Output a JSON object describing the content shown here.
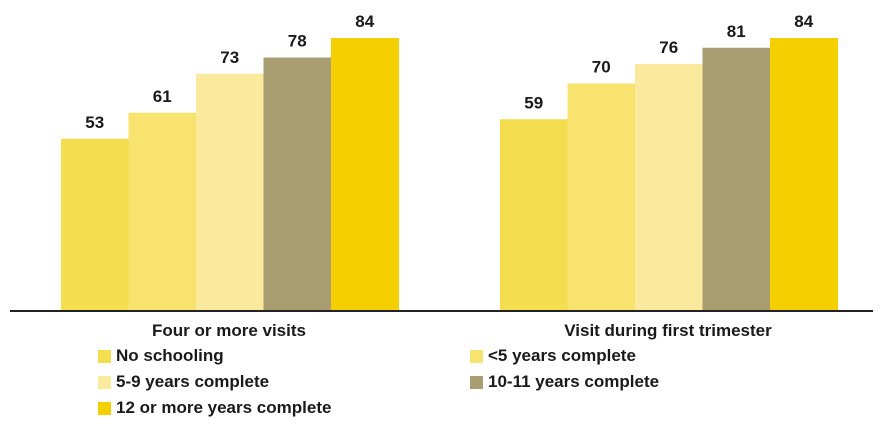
{
  "chart_data": {
    "type": "bar",
    "categories": [
      "Four or more visits",
      "Visit during first trimester"
    ],
    "series": [
      {
        "name": "No schooling",
        "values": [
          53,
          59
        ],
        "color": "#F5DD50"
      },
      {
        "name": "<5 years complete",
        "values": [
          61,
          70
        ],
        "color": "#F8E36E"
      },
      {
        "name": "5-9 years complete",
        "values": [
          73,
          76
        ],
        "color": "#FBEA9E"
      },
      {
        "name": "10-11 years complete",
        "values": [
          78,
          81
        ],
        "color": "#A89E72"
      },
      {
        "name": "12 or more years complete",
        "values": [
          84,
          84
        ],
        "color": "#F5D000"
      }
    ],
    "ylim": [
      0,
      100
    ],
    "grid": false,
    "legend_position": "bottom",
    "axis_color": "#222222"
  }
}
